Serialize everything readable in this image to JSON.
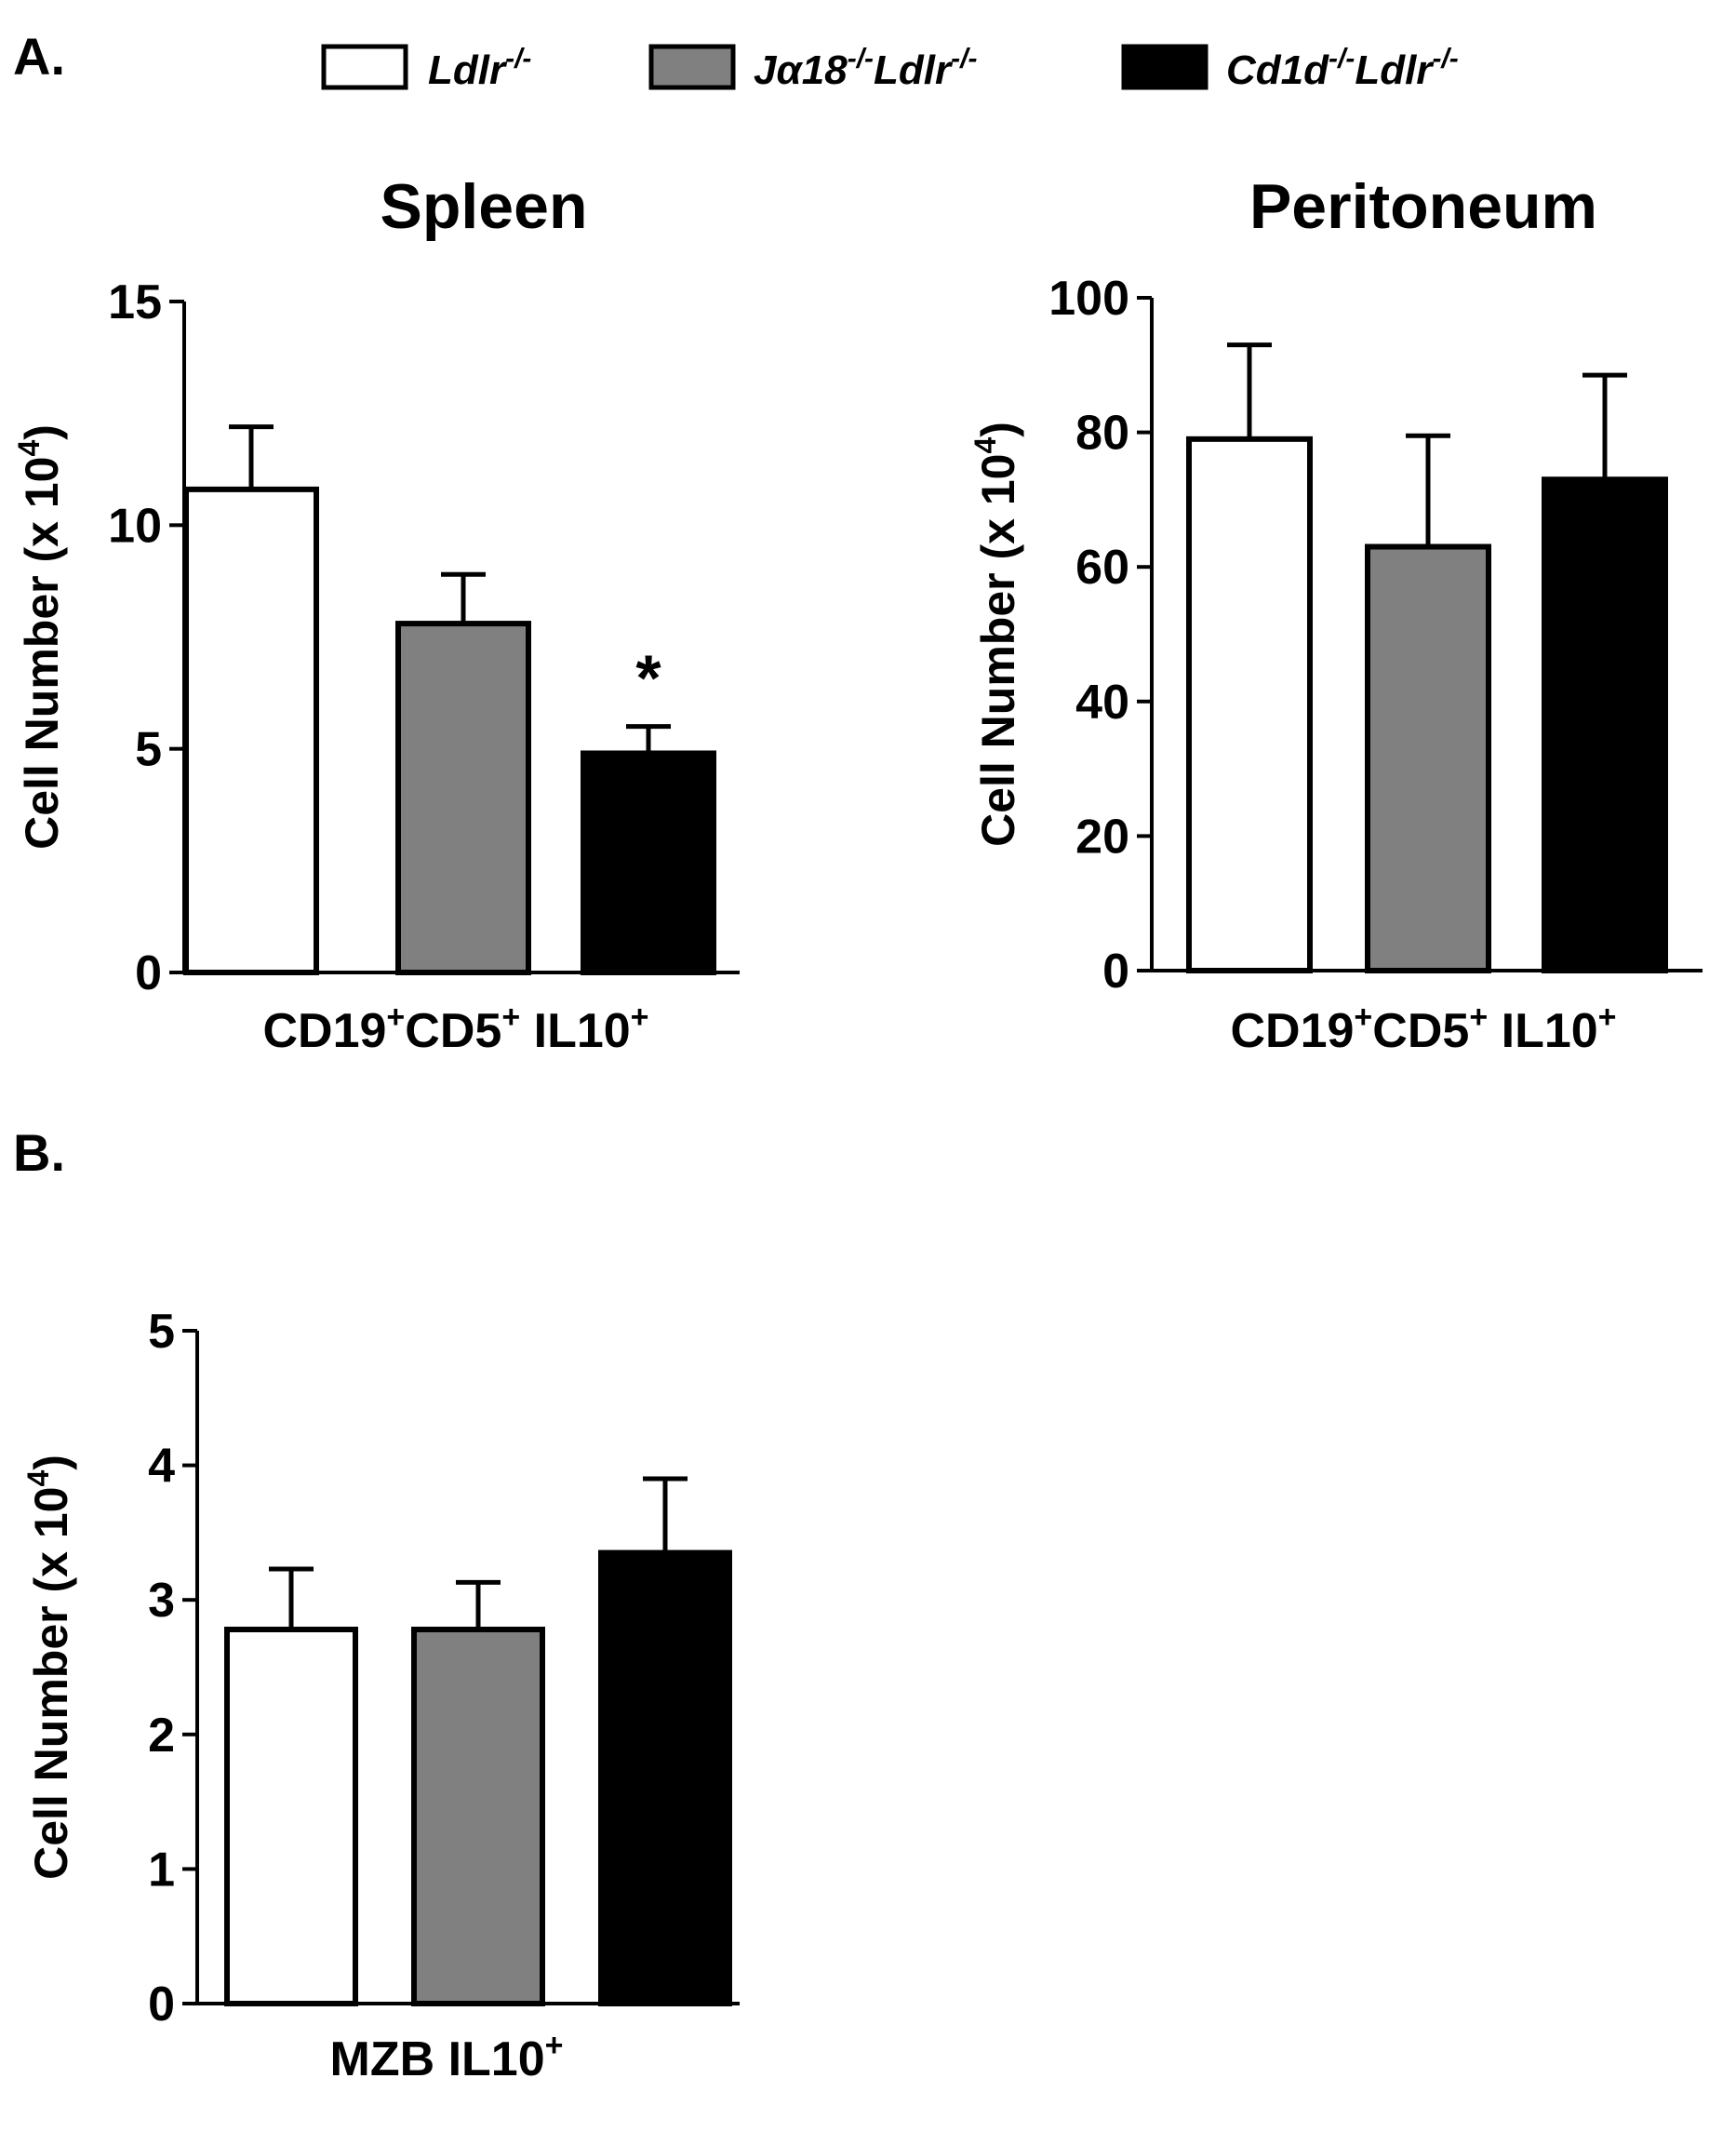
{
  "panels": {
    "a": "A.",
    "b": "B."
  },
  "legend": [
    {
      "name": "Ldlr",
      "sup": "-/-",
      "color": "#ffffff"
    },
    {
      "name_parts": [
        {
          "t": "Jα18",
          "s": "-/-"
        },
        {
          "t": "Ldlr",
          "s": "-/-"
        }
      ],
      "color": "#808080"
    },
    {
      "name_parts": [
        {
          "t": "Cd1d",
          "s": "-/-"
        },
        {
          "t": "Ldlr",
          "s": "-/-"
        }
      ],
      "color": "#000000"
    }
  ],
  "chart_data": [
    {
      "id": "spleen",
      "type": "bar",
      "title": "Spleen",
      "ylabel": "Cell Number (x 10",
      "ylabel_sup": "4",
      "ylabel_end": ")",
      "xlabel_parts": [
        {
          "t": "CD19",
          "s": "+"
        },
        {
          "t": "CD5",
          "s": "+"
        },
        {
          "t": " IL10",
          "s": "+"
        }
      ],
      "ylim": [
        0,
        15
      ],
      "yticks": [
        0,
        5,
        10,
        15
      ],
      "categories": [
        "Ldlr-/-",
        "Jα18-/-Ldlr-/-",
        "Cd1d-/-Ldlr-/-"
      ],
      "values": [
        10.8,
        7.8,
        4.9
      ],
      "errors": [
        1.4,
        1.1,
        0.6
      ],
      "colors": [
        "#ffffff",
        "#808080",
        "#000000"
      ],
      "annotations": [
        {
          "category_index": 2,
          "text": "*"
        }
      ]
    },
    {
      "id": "peritoneum",
      "type": "bar",
      "title": "Peritoneum",
      "ylabel": "Cell Number (x 10",
      "ylabel_sup": "4",
      "ylabel_end": ")",
      "xlabel_parts": [
        {
          "t": "CD19",
          "s": "+"
        },
        {
          "t": "CD5",
          "s": "+"
        },
        {
          "t": " IL10",
          "s": "+"
        }
      ],
      "ylim": [
        0,
        100
      ],
      "yticks": [
        0,
        20,
        40,
        60,
        80,
        100
      ],
      "categories": [
        "Ldlr-/-",
        "Jα18-/-Ldlr-/-",
        "Cd1d-/-Ldlr-/-"
      ],
      "values": [
        79,
        63,
        73
      ],
      "errors": [
        14,
        16.5,
        15.5
      ],
      "colors": [
        "#ffffff",
        "#808080",
        "#000000"
      ],
      "annotations": []
    },
    {
      "id": "mzb",
      "type": "bar",
      "title": "",
      "ylabel": "Cell Number (x 10",
      "ylabel_sup": "4",
      "ylabel_end": ")",
      "xlabel_parts": [
        {
          "t": "MZB IL10",
          "s": "+"
        }
      ],
      "ylim": [
        0,
        5
      ],
      "yticks": [
        0,
        1,
        2,
        3,
        4,
        5
      ],
      "categories": [
        "Ldlr-/-",
        "Jα18-/-Ldlr-/-",
        "Cd1d-/-Ldlr-/-"
      ],
      "values": [
        2.78,
        2.78,
        3.35
      ],
      "errors": [
        0.45,
        0.35,
        0.55
      ],
      "colors": [
        "#ffffff",
        "#808080",
        "#000000"
      ],
      "annotations": []
    }
  ]
}
